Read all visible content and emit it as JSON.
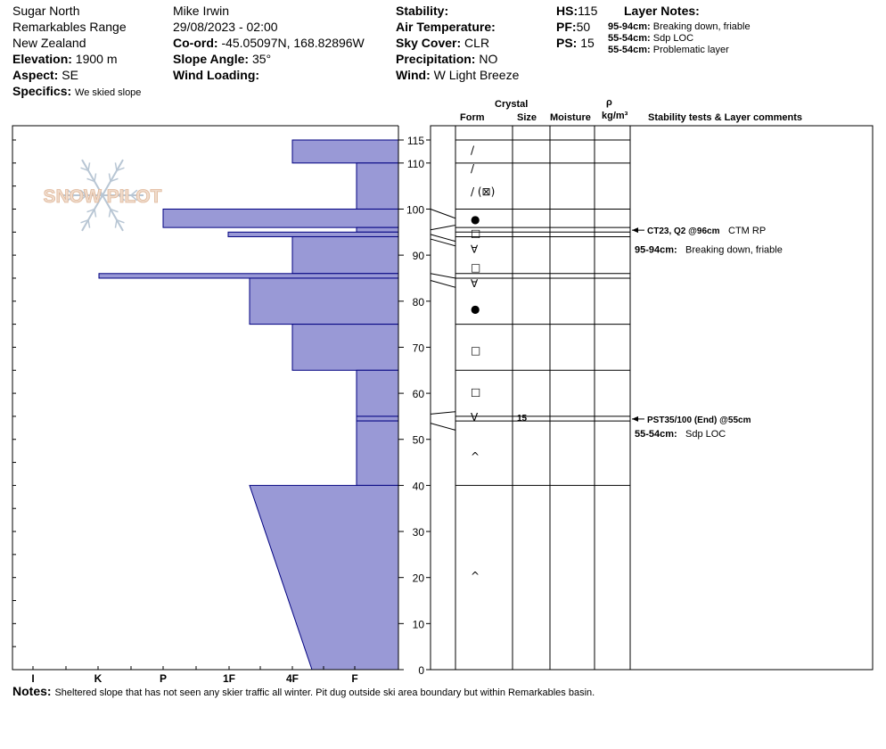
{
  "header": {
    "location": "Sugar North",
    "range": "Remarkables Range",
    "country": "New Zealand",
    "elevation_label": "Elevation:",
    "elevation": "1900 m",
    "aspect_label": "Aspect:",
    "aspect": "SE",
    "specifics_label": "Specifics:",
    "specifics": "We skied slope",
    "observer": "Mike Irwin",
    "datetime": "29/08/2023 - 02:00",
    "coord_label": "Co-ord:",
    "coord": "-45.05097N, 168.82896W",
    "slope_label": "Slope Angle:",
    "slope": "35°",
    "wind_loading_label": "Wind Loading:",
    "wind_loading": "",
    "stability_label": "Stability:",
    "stability": "",
    "air_temp_label": "Air Temperature:",
    "air_temp": "",
    "sky_label": "Sky Cover:",
    "sky": "CLR",
    "precip_label": "Precipitation:",
    "precip": "NO",
    "wind_label": "Wind:",
    "wind": "W Light Breeze",
    "hs_label": "HS:",
    "hs": "115",
    "pf_label": "PF:",
    "pf": "50",
    "ps_label": "PS:",
    "ps": "15",
    "layer_notes_label": "Layer Notes:",
    "layer_notes": [
      {
        "range": "95-94cm:",
        "text": "Breaking down, friable"
      },
      {
        "range": "55-54cm:",
        "text": "Sdp LOC"
      },
      {
        "range": "55-54cm:",
        "text": "Problematic layer"
      }
    ]
  },
  "watermark": "SNOW PILOT",
  "columns": {
    "crystal": "Crystal",
    "form": "Form",
    "size": "Size",
    "moisture": "Moisture",
    "rho": "ρ",
    "density_unit": "kg/m³",
    "comments": "Stability tests & Layer comments"
  },
  "stability_tests": [
    {
      "depth": 96,
      "label": "CT23, Q2 @96cm",
      "extra": "CTM RP"
    },
    {
      "depth": 55,
      "label": "PST35/100 (End) @55cm",
      "extra": ""
    }
  ],
  "layer_comments": [
    {
      "depth": 91.5,
      "range": "95-94cm:",
      "text": "Breaking down, friable"
    },
    {
      "depth": 51.5,
      "range": "55-54cm:",
      "text": "Sdp LOC"
    }
  ],
  "notes_label": "Notes:",
  "notes": "Sheltered slope that has not seen any skier traffic all winter. Pit dug outside ski area boundary but within Remarkables basin.",
  "chart_data": {
    "type": "bar",
    "ylabel": "",
    "ylim": [
      0,
      115
    ],
    "yticks": [
      0,
      10,
      20,
      30,
      40,
      50,
      60,
      70,
      80,
      90,
      100,
      110,
      115
    ],
    "hardness_scale": [
      "I",
      "K",
      "P",
      "1F",
      "4F",
      "F"
    ],
    "hardness_layers": [
      {
        "top": 115,
        "bottom": 110,
        "hardness": "4F"
      },
      {
        "top": 110,
        "bottom": 100,
        "hardness": "F"
      },
      {
        "top": 100,
        "bottom": 96,
        "hardness": "P"
      },
      {
        "top": 96,
        "bottom": 95,
        "hardness": "F"
      },
      {
        "top": 95,
        "bottom": 94,
        "hardness": "P-1F"
      },
      {
        "top": 94,
        "bottom": 86,
        "hardness": "4F"
      },
      {
        "top": 86,
        "bottom": 85,
        "hardness": "K"
      },
      {
        "top": 85,
        "bottom": 75,
        "hardness": "1F+"
      },
      {
        "top": 75,
        "bottom": 65,
        "hardness": "4F"
      },
      {
        "top": 65,
        "bottom": 55,
        "hardness": "F"
      },
      {
        "top": 55,
        "bottom": 54,
        "hardness": "F"
      },
      {
        "top": 54,
        "bottom": 40,
        "hardness": "F"
      },
      {
        "top": 40,
        "bottom": 0,
        "hardness": "1F+ to 4F"
      }
    ],
    "layer_boundaries": [
      115,
      110,
      100,
      96,
      95,
      94,
      86,
      85,
      75,
      65,
      55,
      54,
      40,
      0
    ],
    "crystal_forms": [
      {
        "depth": 113,
        "form": "/"
      },
      {
        "depth": 109,
        "form": "/"
      },
      {
        "depth": 104,
        "form": "/ (⊠)"
      },
      {
        "depth": 98,
        "form": "●"
      },
      {
        "depth": 95,
        "form": "□"
      },
      {
        "depth": 91.5,
        "form": "∀"
      },
      {
        "depth": 87.5,
        "form": "□"
      },
      {
        "depth": 84,
        "form": "∀"
      },
      {
        "depth": 78.5,
        "form": "●"
      },
      {
        "depth": 69.5,
        "form": "□"
      },
      {
        "depth": 60.5,
        "form": "□"
      },
      {
        "depth": 55,
        "form": "V",
        "size": "15"
      },
      {
        "depth": 46.5,
        "form": "^"
      },
      {
        "depth": 20.5,
        "form": "^"
      }
    ]
  }
}
